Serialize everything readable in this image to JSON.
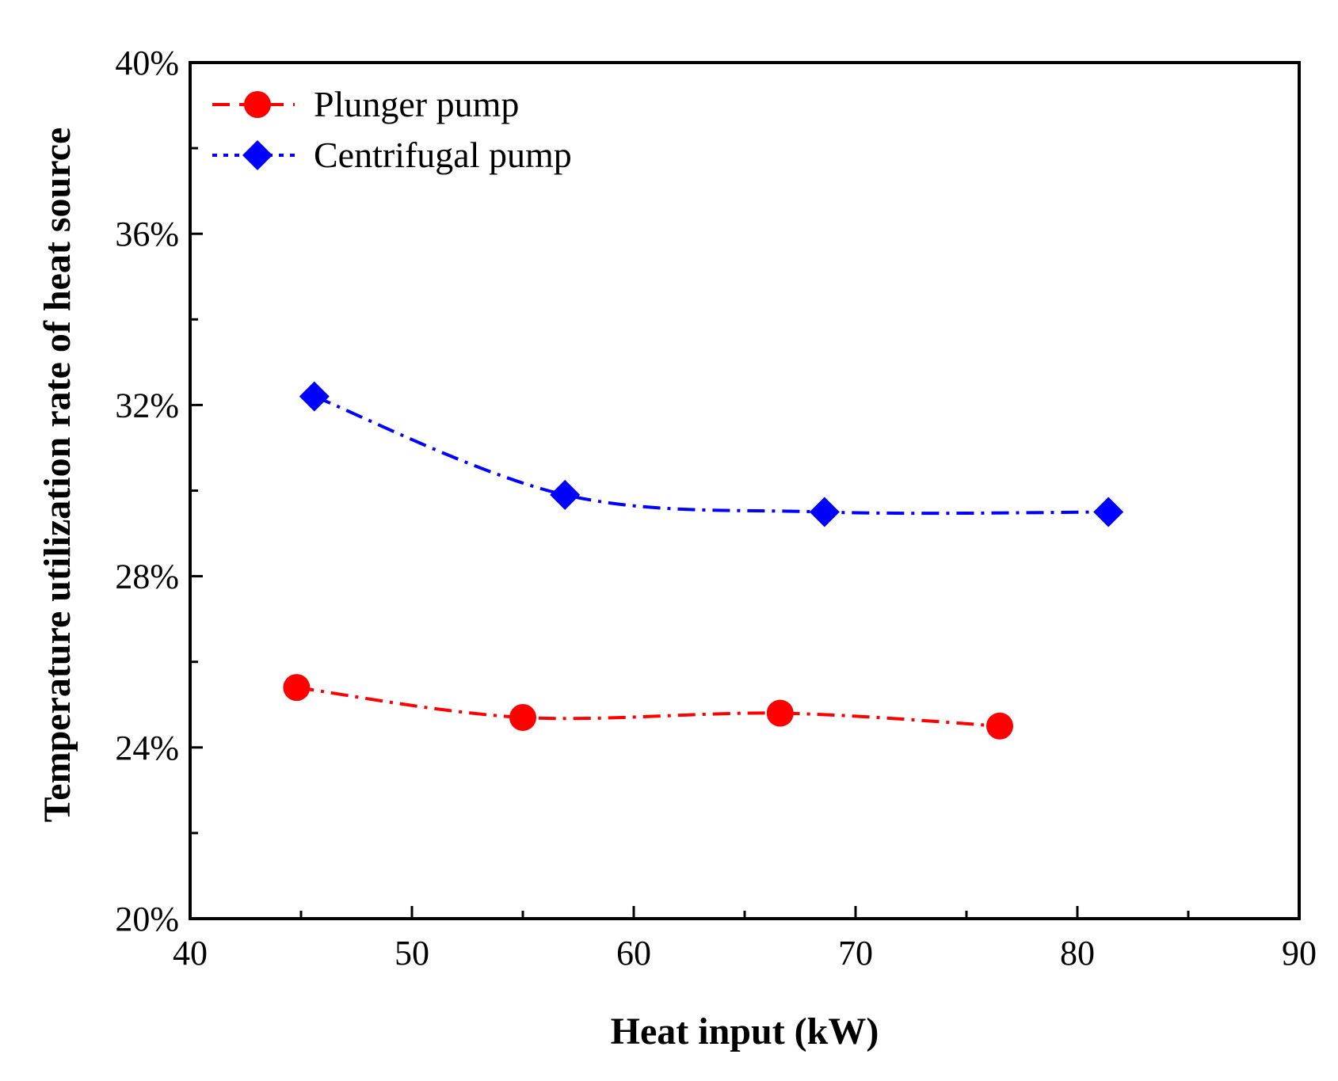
{
  "chart_data": {
    "type": "line",
    "title": "",
    "xlabel": "Heat input (kW)",
    "ylabel": "Temperature utilization rate of heat source",
    "xlim": [
      40,
      90
    ],
    "ylim": [
      20,
      40
    ],
    "x_ticks": [
      40,
      50,
      60,
      70,
      80,
      90
    ],
    "x_tick_labels": [
      "40",
      "50",
      "60",
      "70",
      "80",
      "90"
    ],
    "y_ticks": [
      20,
      24,
      28,
      32,
      36,
      40
    ],
    "y_tick_labels": [
      "20%",
      "24%",
      "28%",
      "32%",
      "36%",
      "40%"
    ],
    "grid": false,
    "legend_position": "top-left",
    "series": [
      {
        "name": "Plunger pump",
        "color": "#ff0000",
        "marker": "circle",
        "line_style": "dash-dot",
        "x": [
          44.8,
          55.0,
          66.6,
          76.5
        ],
        "y": [
          25.4,
          24.7,
          24.8,
          24.5
        ]
      },
      {
        "name": "Centrifugal pump",
        "color": "#0000ff",
        "marker": "diamond",
        "line_style": "dash-dot",
        "x": [
          45.6,
          56.9,
          68.6,
          81.4
        ],
        "y": [
          32.2,
          29.9,
          29.5,
          29.5
        ]
      }
    ]
  }
}
